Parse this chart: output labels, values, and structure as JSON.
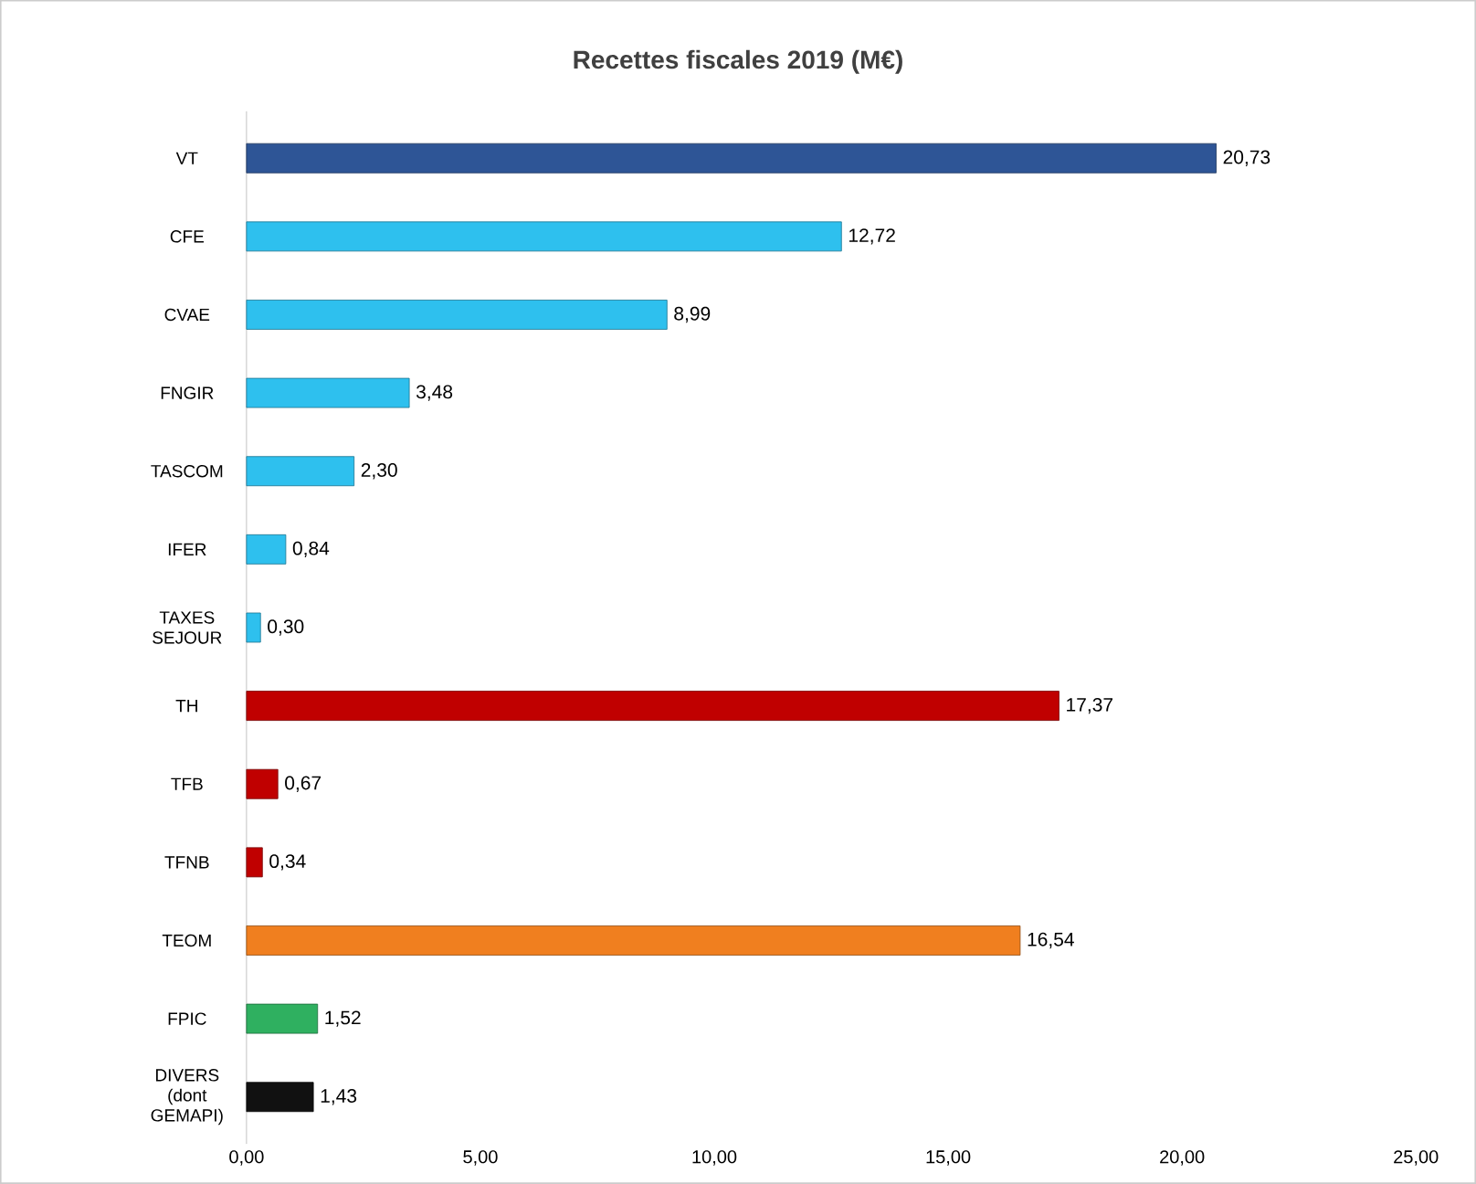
{
  "chart_data": {
    "type": "bar",
    "orientation": "horizontal",
    "title": "Recettes fiscales 2019 (M€)",
    "categories": [
      "VT",
      "CFE",
      "CVAE",
      "FNGIR",
      "TASCOM",
      "IFER",
      "TAXES SEJOUR",
      "TH",
      "TFB",
      "TFNB",
      "TEOM",
      "FPIC",
      "DIVERS (dont GEMAPI)"
    ],
    "values": [
      20.73,
      12.72,
      8.99,
      3.48,
      2.3,
      0.84,
      0.3,
      17.37,
      0.67,
      0.34,
      16.54,
      1.52,
      1.43
    ],
    "value_labels": [
      "20,73",
      "12,72",
      "8,99",
      "3,48",
      "2,30",
      "0,84",
      "0,30",
      "17,37",
      "0,67",
      "0,34",
      "16,54",
      "1,52",
      "1,43"
    ],
    "colors": [
      "#2e5596",
      "#2ec0ee",
      "#2ec0ee",
      "#2ec0ee",
      "#2ec0ee",
      "#2ec0ee",
      "#2ec0ee",
      "#c00000",
      "#c00000",
      "#c00000",
      "#f07f1f",
      "#2fb060",
      "#111111"
    ],
    "xlim": [
      0,
      25
    ],
    "xticks": [
      {
        "value": 0,
        "label": "0,00"
      },
      {
        "value": 5,
        "label": "5,00"
      },
      {
        "value": 10,
        "label": "10,00"
      },
      {
        "value": 15,
        "label": "15,00"
      },
      {
        "value": 20,
        "label": "20,00"
      },
      {
        "value": 25,
        "label": "25,00"
      }
    ],
    "grid": false
  }
}
